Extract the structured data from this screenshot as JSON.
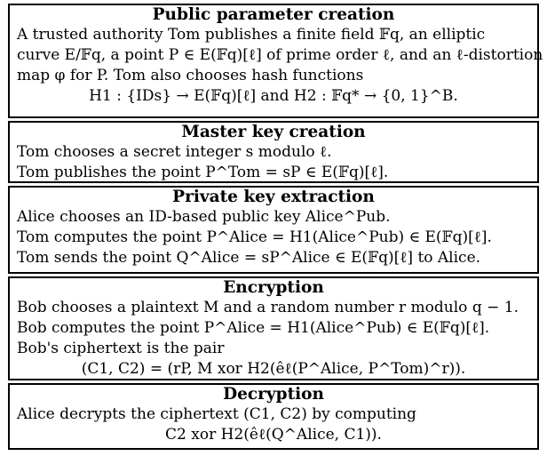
{
  "sections": [
    {
      "title": "Public parameter creation",
      "lines": [
        "A trusted authority Tom publishes a finite field 𝔽q, an elliptic",
        "curve E/𝔽q, a point P ∈ E(𝔽q)[ℓ] of prime order ℓ, and an ℓ-distortion",
        "map φ for P. Tom also chooses hash functions",
        "H1 : {IDs} → E(𝔽q)[ℓ]     and     H2 : 𝔽q* → {0, 1}^B."
      ]
    },
    {
      "title": "Master key creation",
      "lines": [
        "Tom chooses a secret integer s modulo ℓ.",
        "Tom publishes the point P^Tom = sP ∈ E(𝔽q)[ℓ]."
      ]
    },
    {
      "title": "Private key extraction",
      "lines": [
        "Alice chooses an ID-based public key Alice^Pub.",
        "Tom computes the point P^Alice = H1(Alice^Pub) ∈ E(𝔽q)[ℓ].",
        "Tom sends the point Q^Alice = sP^Alice ∈ E(𝔽q)[ℓ] to Alice."
      ]
    },
    {
      "title": "Encryption",
      "lines": [
        "Bob chooses a plaintext M and a random number r modulo q − 1.",
        "Bob computes the point P^Alice = H1(Alice^Pub) ∈ E(𝔽q)[ℓ].",
        "Bob's ciphertext is the pair",
        "(C1, C2) = (rP, M xor H2(êℓ(P^Alice, P^Tom)^r))."
      ]
    },
    {
      "title": "Decryption",
      "lines": [
        "Alice decrypts the ciphertext (C1, C2) by computing",
        "C2 xor H2(êℓ(Q^Alice, C1))."
      ]
    }
  ]
}
